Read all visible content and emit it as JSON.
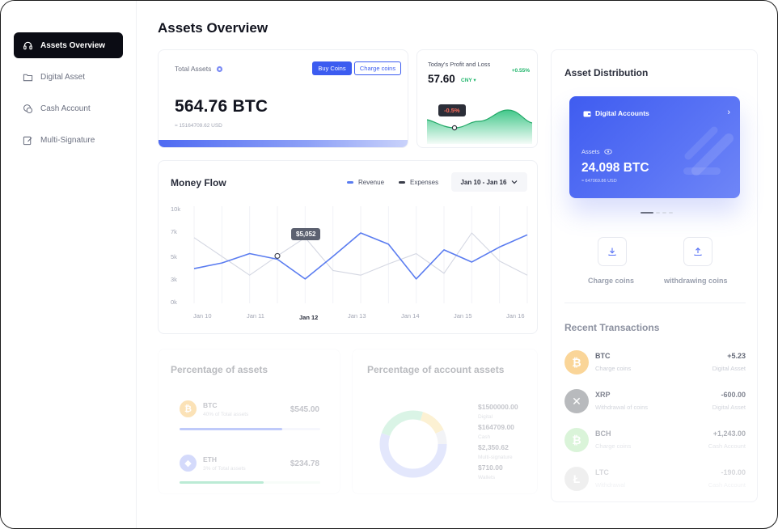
{
  "sidebar": {
    "items": [
      {
        "label": "Assets Overview",
        "icon": "headset-icon",
        "active": true
      },
      {
        "label": "Digital Asset",
        "icon": "folder-icon",
        "active": false
      },
      {
        "label": "Cash Account",
        "icon": "coins-icon",
        "active": false
      },
      {
        "label": "Multi-Signature",
        "icon": "edit-icon",
        "active": false
      }
    ]
  },
  "header": {
    "title": "Assets Overview"
  },
  "total_assets": {
    "label": "Total Assets",
    "buy_label": "Buy Coins",
    "charge_label": "Charge coins",
    "value": "564.76 BTC",
    "sub": "≈ 15164709.62 USD"
  },
  "profit": {
    "label": "Today's Profit and Loss",
    "change": "+0.55%",
    "value": "57.60",
    "currency": "CNY ▾",
    "tooltip": "-0.5%"
  },
  "money_flow": {
    "title": "Money Flow",
    "legend": [
      {
        "name": "Revenue",
        "color": "#5a7cf0"
      },
      {
        "name": "Expenses",
        "color": "#3a3d4a"
      }
    ],
    "date_range": "Jan 10 - Jan 16",
    "tooltip": "$5,052"
  },
  "chart_data": {
    "type": "line",
    "title": "Money Flow",
    "y_ticks": [
      "10k",
      "7k",
      "5k",
      "3k",
      "0k"
    ],
    "x_ticks": [
      "Jan 10",
      "Jan 11",
      "Jan 12",
      "Jan 13",
      "Jan 14",
      "Jan 15",
      "Jan 16"
    ],
    "highlight_tick": "Jan 12",
    "ylim": [
      0,
      10000
    ],
    "x": [
      0,
      0.5,
      1,
      1.5,
      2,
      2.5,
      3,
      3.5,
      4,
      4.5,
      5,
      5.5,
      6
    ],
    "series": [
      {
        "name": "Revenue",
        "values": [
          3700,
          4300,
          5300,
          4700,
          2600,
          5000,
          7500,
          6300,
          2600,
          5700,
          4400,
          6000,
          7300
        ]
      },
      {
        "name": "Expenses",
        "values": [
          7000,
          5000,
          3000,
          5052,
          7000,
          3500,
          3000,
          4200,
          5300,
          3200,
          7500,
          4500,
          3000
        ]
      }
    ]
  },
  "percentage_assets": {
    "title": "Percentage of assets",
    "rows": [
      {
        "coin": "BTC",
        "desc": "40% of Total assets",
        "value": "$545.00",
        "progress": 0.58
      },
      {
        "coin": "ETH",
        "desc": "3% of Total assets",
        "value": "$234.78",
        "progress": 0.48
      }
    ]
  },
  "percentage_account": {
    "title": "Percentage of account assets",
    "items": [
      {
        "value": "$1500000.00",
        "name": "Digital"
      },
      {
        "value": "$164709.00",
        "name": "Cash"
      },
      {
        "value": "$2,350.62",
        "name": "Multi-signature"
      },
      {
        "value": "$710.00",
        "name": "Wallets"
      }
    ]
  },
  "distribution": {
    "title": "Asset Distribution",
    "card": {
      "header": "Digital Accounts",
      "assets_label": "Assets",
      "value": "24.098 BTC",
      "sub": "≈ 647069.86 USD"
    },
    "charge_label": "Charge coins",
    "withdraw_label": "withdrawing coins"
  },
  "recent": {
    "title": "Recent Transactions",
    "items": [
      {
        "coin": "BTC",
        "desc": "Charge coins",
        "amount": "+5.23",
        "account": "Digital Asset",
        "color": "#f5a623",
        "glyph": "₿"
      },
      {
        "coin": "XRP",
        "desc": "Withdrawal of coins",
        "amount": "-600.00",
        "account": "Digital Asset",
        "color": "#23292f",
        "glyph": "✕"
      },
      {
        "coin": "BCH",
        "desc": "Charge coins",
        "amount": "+1,243.00",
        "account": "Cash Account",
        "color": "#4cc947",
        "glyph": "₿"
      },
      {
        "coin": "LTC",
        "desc": "Withdrawal",
        "amount": "-190.00",
        "account": "Cash Account",
        "color": "#b8b8b8",
        "glyph": "Ł"
      }
    ]
  }
}
